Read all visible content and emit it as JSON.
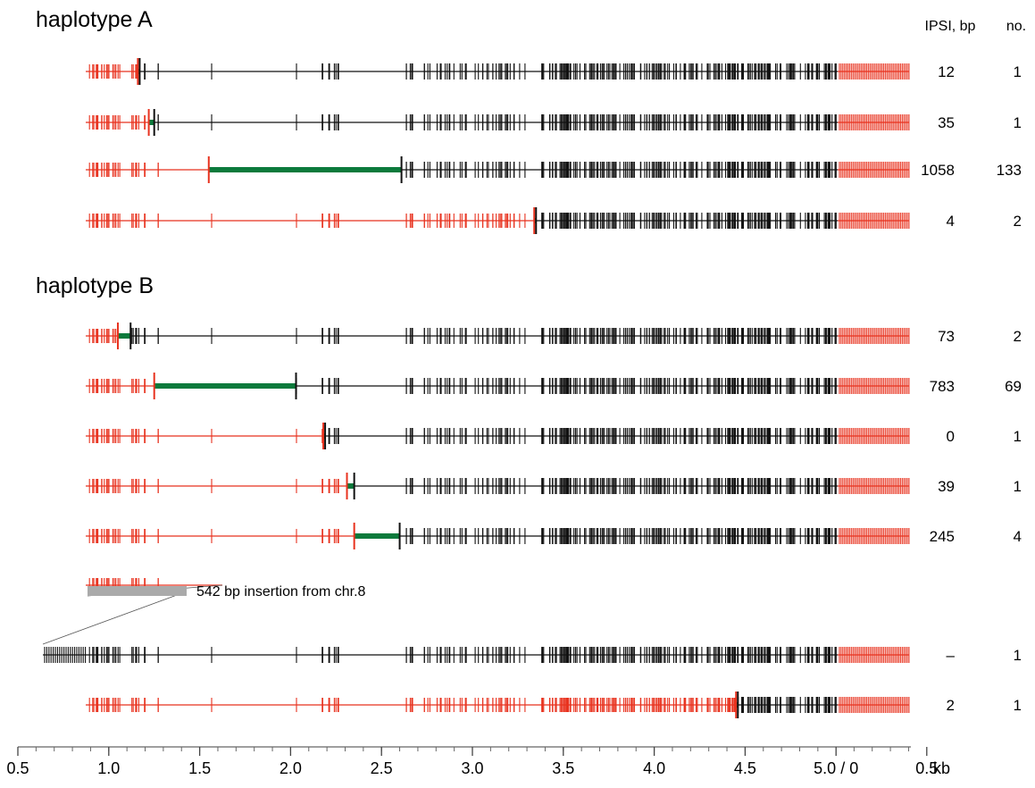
{
  "sections": [
    {
      "id": "A",
      "title": "haplotype A"
    },
    {
      "id": "B",
      "title": "haplotype B"
    }
  ],
  "columns": {
    "ipsi": "IPSI, bp",
    "count": "no."
  },
  "colors": {
    "haplotype_red": "#e8321e",
    "black": "#111111",
    "ipsi_green": "#0c7a3c",
    "insertion_gray": "#aaaaaa"
  },
  "scale": {
    "segment1_range_kb": [
      0.5,
      5.0
    ],
    "segment2_range_kb": [
      0.0,
      0.5
    ],
    "tick_labels": [
      "0.5",
      "1.0",
      "1.5",
      "2.0",
      "2.5",
      "3.0",
      "3.5",
      "4.0",
      "4.5",
      "5.0 / 0",
      "0.5"
    ],
    "unit": "kb"
  },
  "rows": [
    {
      "section": "A",
      "red_end_kb": 1.16,
      "black_start_kb": 1.17,
      "ipsi": "12",
      "no": "1"
    },
    {
      "section": "A",
      "red_end_kb": 1.22,
      "black_start_kb": 1.25,
      "ipsi": "35",
      "no": "1"
    },
    {
      "section": "A",
      "red_end_kb": 1.55,
      "black_start_kb": 2.61,
      "ipsi": "1058",
      "no": "133"
    },
    {
      "section": "A",
      "red_end_kb": 3.34,
      "black_start_kb": 3.35,
      "ipsi": "4",
      "no": "2"
    },
    {
      "section": "B",
      "red_end_kb": 1.05,
      "black_start_kb": 1.12,
      "ipsi": "73",
      "no": "2"
    },
    {
      "section": "B",
      "red_end_kb": 1.25,
      "black_start_kb": 2.03,
      "ipsi": "783",
      "no": "69"
    },
    {
      "section": "B",
      "red_end_kb": 2.18,
      "black_start_kb": 2.19,
      "ipsi": "0",
      "no": "1"
    },
    {
      "section": "B",
      "red_end_kb": 2.31,
      "black_start_kb": 2.35,
      "ipsi": "39",
      "no": "1"
    },
    {
      "section": "B",
      "red_end_kb": 2.35,
      "black_start_kb": 2.6,
      "ipsi": "245",
      "no": "4"
    },
    {
      "section": "B",
      "red_end_kb": null,
      "black_start_kb": null,
      "insertion": true,
      "ipsi": "–",
      "no": "1"
    },
    {
      "section": "B",
      "red_end_kb": 4.45,
      "black_start_kb": 4.46,
      "ipsi": "2",
      "no": "1"
    }
  ],
  "insertion_note": "542 bp insertion from chr.8"
}
